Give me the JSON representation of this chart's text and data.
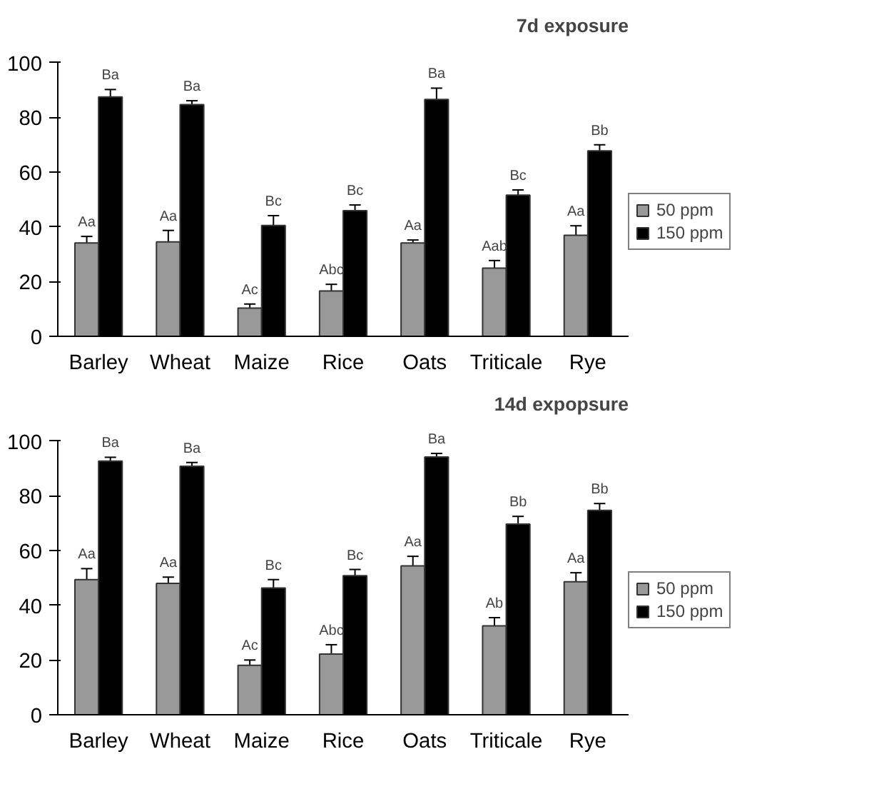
{
  "chart_data": [
    {
      "type": "bar",
      "title": "7d exposure",
      "categories": [
        "Barley",
        "Wheat",
        "Maize",
        "Rice",
        "Oats",
        "Triticale",
        "Rye"
      ],
      "ylim": [
        0,
        100
      ],
      "yticks": [
        0,
        20,
        40,
        60,
        80,
        100
      ],
      "grid": false,
      "legend": "right",
      "series": [
        {
          "name": "50 ppm",
          "color": "#999999",
          "values": [
            34.1,
            34.5,
            10.3,
            16.6,
            34.1,
            24.9,
            36.9
          ],
          "errors": [
            2.4,
            4.2,
            1.5,
            2.4,
            1.1,
            2.8,
            3.5
          ],
          "value_labels": [
            "Aa",
            "Aa",
            "Ac",
            "Abc",
            "Aa",
            "Aab",
            "Aa"
          ]
        },
        {
          "name": "150 ppm",
          "color": "#000000",
          "values": [
            87.5,
            84.7,
            40.5,
            45.9,
            86.6,
            51.6,
            67.8
          ],
          "errors": [
            2.7,
            1.4,
            3.6,
            2.1,
            4.1,
            1.9,
            2.2
          ],
          "value_labels": [
            "Ba",
            "Ba",
            "Bc",
            "Bc",
            "Ba",
            "Bc",
            "Bb"
          ]
        }
      ]
    },
    {
      "type": "bar",
      "title": "14d expopsure",
      "categories": [
        "Barley",
        "Wheat",
        "Maize",
        "Rice",
        "Oats",
        "Triticale",
        "Rye"
      ],
      "ylim": [
        0,
        100
      ],
      "yticks": [
        0,
        20,
        40,
        60,
        80,
        100
      ],
      "grid": false,
      "legend": "right",
      "series": [
        {
          "name": "50 ppm",
          "color": "#999999",
          "values": [
            49.4,
            48.0,
            18.1,
            22.2,
            54.4,
            32.5,
            48.6
          ],
          "errors": [
            4.0,
            2.3,
            1.9,
            3.4,
            3.5,
            3.0,
            3.3
          ],
          "value_labels": [
            "Aa",
            "Aa",
            "Ac",
            "Abc",
            "Aa",
            "Ab",
            "Aa"
          ]
        },
        {
          "name": "150 ppm",
          "color": "#000000",
          "values": [
            92.7,
            90.8,
            46.3,
            50.8,
            94.2,
            69.7,
            74.7
          ],
          "errors": [
            1.4,
            1.4,
            3.1,
            2.3,
            1.3,
            2.8,
            2.5
          ],
          "value_labels": [
            "Ba",
            "Ba",
            "Bc",
            "Bc",
            "Ba",
            "Bb",
            "Bb"
          ]
        }
      ]
    }
  ]
}
